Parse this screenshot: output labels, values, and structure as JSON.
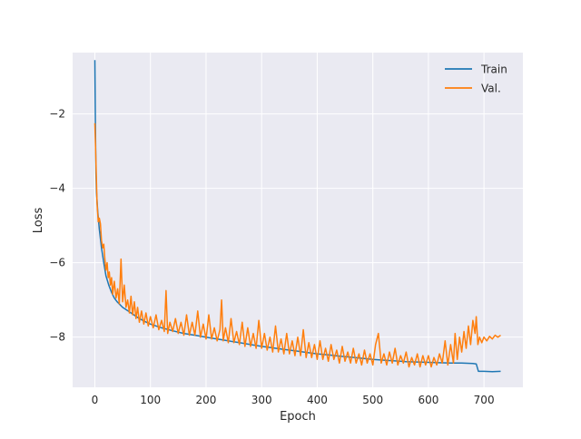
{
  "chart_data": {
    "type": "line",
    "title": "",
    "xlabel": "Epoch",
    "ylabel": "Loss",
    "xlim": [
      -40,
      770
    ],
    "ylim": [
      -9.35,
      -0.35
    ],
    "xticks": [
      0,
      100,
      200,
      300,
      400,
      500,
      600,
      700
    ],
    "yticks": [
      -8,
      -6,
      -4,
      -2
    ],
    "ytick_labels": [
      "−8",
      "−6",
      "−4",
      "−2"
    ],
    "grid": true,
    "legend_position": "top-right",
    "series": [
      {
        "name": "Train",
        "color": "#1f77b4",
        "points": [
          [
            0,
            -0.55
          ],
          [
            1,
            -2.3
          ],
          [
            2,
            -3.6
          ],
          [
            3,
            -4.1
          ],
          [
            5,
            -4.6
          ],
          [
            8,
            -5.1
          ],
          [
            12,
            -5.6
          ],
          [
            16,
            -6.0
          ],
          [
            20,
            -6.35
          ],
          [
            25,
            -6.6
          ],
          [
            30,
            -6.8
          ],
          [
            35,
            -6.95
          ],
          [
            40,
            -7.05
          ],
          [
            50,
            -7.2
          ],
          [
            60,
            -7.3
          ],
          [
            70,
            -7.4
          ],
          [
            80,
            -7.5
          ],
          [
            90,
            -7.58
          ],
          [
            100,
            -7.65
          ],
          [
            120,
            -7.75
          ],
          [
            140,
            -7.83
          ],
          [
            160,
            -7.9
          ],
          [
            180,
            -7.95
          ],
          [
            200,
            -8.0
          ],
          [
            220,
            -8.05
          ],
          [
            240,
            -8.1
          ],
          [
            260,
            -8.15
          ],
          [
            280,
            -8.2
          ],
          [
            300,
            -8.25
          ],
          [
            320,
            -8.29
          ],
          [
            340,
            -8.33
          ],
          [
            360,
            -8.37
          ],
          [
            380,
            -8.41
          ],
          [
            400,
            -8.45
          ],
          [
            420,
            -8.48
          ],
          [
            440,
            -8.51
          ],
          [
            460,
            -8.54
          ],
          [
            480,
            -8.57
          ],
          [
            500,
            -8.6
          ],
          [
            520,
            -8.62
          ],
          [
            540,
            -8.64
          ],
          [
            560,
            -8.66
          ],
          [
            580,
            -8.67
          ],
          [
            600,
            -8.68
          ],
          [
            620,
            -8.69
          ],
          [
            640,
            -8.7
          ],
          [
            660,
            -8.7
          ],
          [
            680,
            -8.71
          ],
          [
            686,
            -8.72
          ],
          [
            690,
            -8.92
          ],
          [
            700,
            -8.92
          ],
          [
            715,
            -8.93
          ],
          [
            730,
            -8.92
          ]
        ]
      },
      {
        "name": "Val.",
        "color": "#ff7f0e",
        "points": [
          [
            0,
            -2.25
          ],
          [
            2,
            -3.3
          ],
          [
            4,
            -4.4
          ],
          [
            6,
            -4.9
          ],
          [
            8,
            -4.8
          ],
          [
            10,
            -4.95
          ],
          [
            12,
            -5.4
          ],
          [
            14,
            -5.6
          ],
          [
            16,
            -5.5
          ],
          [
            18,
            -5.9
          ],
          [
            20,
            -6.2
          ],
          [
            22,
            -6.0
          ],
          [
            24,
            -6.4
          ],
          [
            26,
            -6.25
          ],
          [
            28,
            -6.6
          ],
          [
            30,
            -6.4
          ],
          [
            32,
            -6.85
          ],
          [
            35,
            -6.5
          ],
          [
            38,
            -6.95
          ],
          [
            41,
            -6.7
          ],
          [
            44,
            -7.1
          ],
          [
            47,
            -5.9
          ],
          [
            50,
            -7.05
          ],
          [
            53,
            -6.6
          ],
          [
            56,
            -7.2
          ],
          [
            59,
            -7.0
          ],
          [
            62,
            -7.35
          ],
          [
            65,
            -6.9
          ],
          [
            68,
            -7.4
          ],
          [
            71,
            -7.05
          ],
          [
            74,
            -7.5
          ],
          [
            77,
            -7.2
          ],
          [
            80,
            -7.6
          ],
          [
            84,
            -7.3
          ],
          [
            88,
            -7.65
          ],
          [
            92,
            -7.35
          ],
          [
            96,
            -7.7
          ],
          [
            100,
            -7.45
          ],
          [
            105,
            -7.75
          ],
          [
            110,
            -7.4
          ],
          [
            115,
            -7.8
          ],
          [
            120,
            -7.55
          ],
          [
            125,
            -7.85
          ],
          [
            128,
            -6.75
          ],
          [
            131,
            -7.9
          ],
          [
            135,
            -7.6
          ],
          [
            140,
            -7.85
          ],
          [
            145,
            -7.5
          ],
          [
            150,
            -7.9
          ],
          [
            155,
            -7.6
          ],
          [
            160,
            -7.95
          ],
          [
            165,
            -7.4
          ],
          [
            170,
            -7.95
          ],
          [
            175,
            -7.6
          ],
          [
            180,
            -7.95
          ],
          [
            185,
            -7.3
          ],
          [
            190,
            -8.0
          ],
          [
            195,
            -7.65
          ],
          [
            200,
            -8.05
          ],
          [
            205,
            -7.4
          ],
          [
            210,
            -8.05
          ],
          [
            215,
            -7.75
          ],
          [
            220,
            -8.1
          ],
          [
            225,
            -7.8
          ],
          [
            228,
            -7.0
          ],
          [
            231,
            -8.1
          ],
          [
            235,
            -7.75
          ],
          [
            240,
            -8.15
          ],
          [
            245,
            -7.5
          ],
          [
            250,
            -8.15
          ],
          [
            255,
            -7.85
          ],
          [
            260,
            -8.2
          ],
          [
            265,
            -7.6
          ],
          [
            270,
            -8.25
          ],
          [
            275,
            -7.75
          ],
          [
            280,
            -8.25
          ],
          [
            285,
            -7.9
          ],
          [
            290,
            -8.3
          ],
          [
            295,
            -7.55
          ],
          [
            300,
            -8.3
          ],
          [
            305,
            -7.9
          ],
          [
            310,
            -8.35
          ],
          [
            315,
            -8.0
          ],
          [
            320,
            -8.4
          ],
          [
            325,
            -7.7
          ],
          [
            330,
            -8.4
          ],
          [
            335,
            -8.05
          ],
          [
            340,
            -8.45
          ],
          [
            345,
            -7.9
          ],
          [
            350,
            -8.45
          ],
          [
            355,
            -8.1
          ],
          [
            360,
            -8.5
          ],
          [
            365,
            -8.0
          ],
          [
            370,
            -8.5
          ],
          [
            375,
            -7.8
          ],
          [
            380,
            -8.55
          ],
          [
            385,
            -8.15
          ],
          [
            390,
            -8.55
          ],
          [
            395,
            -8.2
          ],
          [
            400,
            -8.6
          ],
          [
            405,
            -8.1
          ],
          [
            410,
            -8.6
          ],
          [
            415,
            -8.3
          ],
          [
            420,
            -8.65
          ],
          [
            425,
            -8.2
          ],
          [
            430,
            -8.6
          ],
          [
            435,
            -8.35
          ],
          [
            440,
            -8.7
          ],
          [
            445,
            -8.25
          ],
          [
            450,
            -8.65
          ],
          [
            455,
            -8.4
          ],
          [
            460,
            -8.7
          ],
          [
            465,
            -8.3
          ],
          [
            470,
            -8.7
          ],
          [
            475,
            -8.45
          ],
          [
            480,
            -8.75
          ],
          [
            485,
            -8.35
          ],
          [
            490,
            -8.7
          ],
          [
            495,
            -8.45
          ],
          [
            500,
            -8.75
          ],
          [
            505,
            -8.2
          ],
          [
            510,
            -7.9
          ],
          [
            515,
            -8.7
          ],
          [
            520,
            -8.45
          ],
          [
            525,
            -8.75
          ],
          [
            530,
            -8.4
          ],
          [
            535,
            -8.7
          ],
          [
            540,
            -8.3
          ],
          [
            545,
            -8.75
          ],
          [
            550,
            -8.5
          ],
          [
            555,
            -8.7
          ],
          [
            560,
            -8.4
          ],
          [
            565,
            -8.8
          ],
          [
            570,
            -8.55
          ],
          [
            575,
            -8.75
          ],
          [
            580,
            -8.45
          ],
          [
            585,
            -8.8
          ],
          [
            590,
            -8.5
          ],
          [
            595,
            -8.75
          ],
          [
            600,
            -8.5
          ],
          [
            605,
            -8.8
          ],
          [
            610,
            -8.55
          ],
          [
            615,
            -8.75
          ],
          [
            620,
            -8.45
          ],
          [
            625,
            -8.7
          ],
          [
            630,
            -8.1
          ],
          [
            635,
            -8.75
          ],
          [
            640,
            -8.2
          ],
          [
            645,
            -8.7
          ],
          [
            648,
            -7.9
          ],
          [
            652,
            -8.6
          ],
          [
            656,
            -8.0
          ],
          [
            660,
            -8.4
          ],
          [
            664,
            -7.85
          ],
          [
            668,
            -8.3
          ],
          [
            672,
            -7.7
          ],
          [
            676,
            -8.2
          ],
          [
            680,
            -7.55
          ],
          [
            684,
            -7.9
          ],
          [
            686,
            -7.45
          ],
          [
            689,
            -8.2
          ],
          [
            692,
            -8.0
          ],
          [
            696,
            -8.15
          ],
          [
            700,
            -8.0
          ],
          [
            705,
            -8.1
          ],
          [
            710,
            -7.98
          ],
          [
            715,
            -8.05
          ],
          [
            720,
            -7.95
          ],
          [
            725,
            -8.0
          ],
          [
            730,
            -7.95
          ]
        ]
      }
    ]
  }
}
